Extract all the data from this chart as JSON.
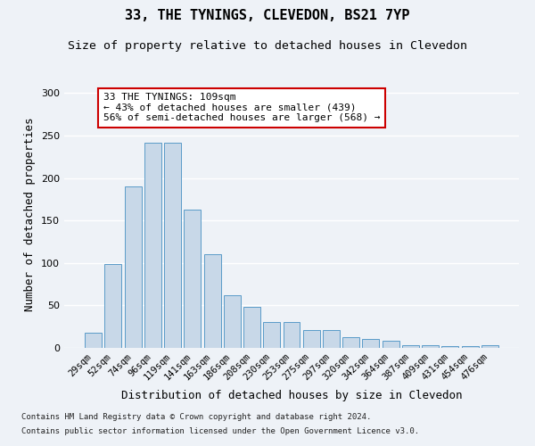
{
  "title": "33, THE TYNINGS, CLEVEDON, BS21 7YP",
  "subtitle": "Size of property relative to detached houses in Clevedon",
  "xlabel": "Distribution of detached houses by size in Clevedon",
  "ylabel": "Number of detached properties",
  "categories": [
    "29sqm",
    "52sqm",
    "74sqm",
    "96sqm",
    "119sqm",
    "141sqm",
    "163sqm",
    "186sqm",
    "208sqm",
    "230sqm",
    "253sqm",
    "275sqm",
    "297sqm",
    "320sqm",
    "342sqm",
    "364sqm",
    "387sqm",
    "409sqm",
    "431sqm",
    "454sqm",
    "476sqm"
  ],
  "values": [
    18,
    99,
    190,
    242,
    242,
    163,
    110,
    62,
    48,
    30,
    30,
    21,
    21,
    13,
    10,
    8,
    3,
    3,
    2,
    2,
    3
  ],
  "bar_color": "#c8d8e8",
  "bar_edge_color": "#5a9bc8",
  "annotation_box_text": "33 THE TYNINGS: 109sqm\n← 43% of detached houses are smaller (439)\n56% of semi-detached houses are larger (568) →",
  "annotation_box_color": "#ffffff",
  "annotation_box_edge_color": "#cc0000",
  "footnote1": "Contains HM Land Registry data © Crown copyright and database right 2024.",
  "footnote2": "Contains public sector information licensed under the Open Government Licence v3.0.",
  "ylim": [
    0,
    315
  ],
  "yticks": [
    0,
    50,
    100,
    150,
    200,
    250,
    300
  ],
  "background_color": "#eef2f7",
  "grid_color": "#ffffff",
  "title_fontsize": 11,
  "subtitle_fontsize": 9.5,
  "ylabel_fontsize": 9,
  "xlabel_fontsize": 9,
  "tick_fontsize": 7.5,
  "annotation_fontsize": 8,
  "footnote_fontsize": 6.5
}
